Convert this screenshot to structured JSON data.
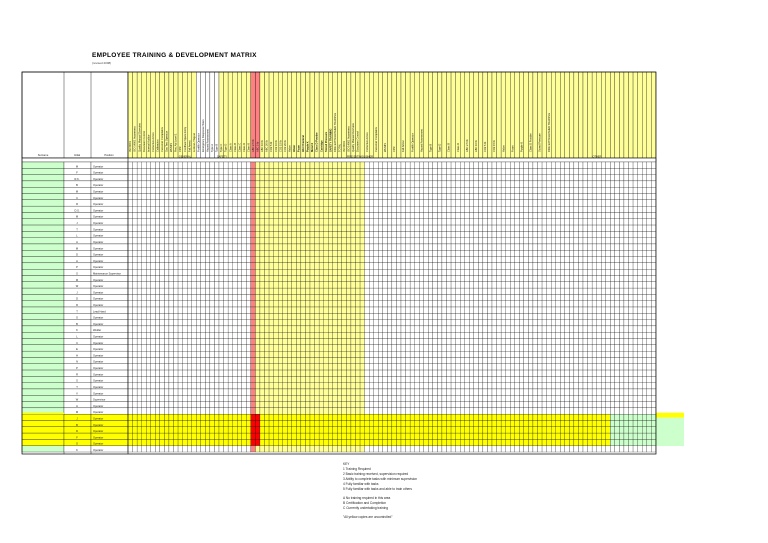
{
  "document": {
    "title": "EMPLOYEE TRAINING & DEVELOPMENT MATRIX",
    "subtitle": "(revised 2008)"
  },
  "table": {
    "headers": {
      "surname": "Surname",
      "initial": "Initial",
      "position": "Position"
    },
    "group_labels": {
      "general": "GENERAL",
      "safety": "SAFETY",
      "fire_extinguisher": "FIRE EXTINGUISHER",
      "other": "OTHER"
    },
    "column_headers": [
      "ISO 9001",
      "ISO 14001 Awareness",
      "Quality Manual Overview",
      "Document Control",
      "Internal Auditor",
      "Corrective Action",
      "Calibration",
      "Customer Complaints",
      "Gas Test Operator",
      "WHMIS",
      "First Aid Level 1",
      "CPR",
      "Confined Space Entry",
      "Fall Arrest",
      "Lockout / Tagout",
      "Forklift Operator",
      "Emergency Response Team",
      "Hazard Assessment",
      "Type A",
      "Type B",
      "Type C",
      "Type D",
      "Class A",
      "Class B",
      "Class C",
      "Class D",
      "Class K",
      "ABC 2.5 lb",
      "ABC 5 lb",
      "ABC 10 lb",
      "ABC 20 lb",
      "CO2 5 lb",
      "CO2 10 lb",
      "CO2 15 lb",
      "CO2 20 lb",
      "Halon",
      "Water",
      "Foam",
      "Wet Chemical",
      "Purple K",
      "Metal X",
      "Class D Powder",
      "Cartridge",
      "Stored Pressure",
      "SAFETY TRAINING",
      "FIRE EXTINGUISHER TRAINING",
      "TOTAL"
    ],
    "rows": [
      {
        "initial": "M",
        "position": "Operator"
      },
      {
        "initial": "F",
        "position": "Operator"
      },
      {
        "initial": "R.K.",
        "position": "Operator"
      },
      {
        "initial": "B",
        "position": "Operator"
      },
      {
        "initial": "M",
        "position": "Operator"
      },
      {
        "initial": "C",
        "position": "Operator"
      },
      {
        "initial": "R",
        "position": "Operator"
      },
      {
        "initial": "D.S.",
        "position": "Operator"
      },
      {
        "initial": "M",
        "position": "Operator"
      },
      {
        "initial": "J",
        "position": "Operator"
      },
      {
        "initial": "T",
        "position": "Operator"
      },
      {
        "initial": "L",
        "position": "Operator"
      },
      {
        "initial": "A",
        "position": "Operator"
      },
      {
        "initial": "M",
        "position": "Operator"
      },
      {
        "initial": "D",
        "position": "Operator"
      },
      {
        "initial": "A",
        "position": "Operator"
      },
      {
        "initial": "P",
        "position": "Operator"
      },
      {
        "initial": "S",
        "position": "Maintenance Supervisor"
      },
      {
        "initial": "M",
        "position": "Operator"
      },
      {
        "initial": "W",
        "position": "Operator"
      },
      {
        "initial": "J",
        "position": "Operator"
      },
      {
        "initial": "D",
        "position": "Operator"
      },
      {
        "initial": "R",
        "position": "Operator"
      },
      {
        "initial": "T",
        "position": "Lead Hand"
      },
      {
        "initial": "G",
        "position": "Operator"
      },
      {
        "initial": "B",
        "position": "Operator"
      },
      {
        "initial": "K",
        "position": "Welder"
      },
      {
        "initial": "L",
        "position": "Operator"
      },
      {
        "initial": "C",
        "position": "Operator"
      },
      {
        "initial": "E",
        "position": "Operator"
      },
      {
        "initial": "H",
        "position": "Operator"
      },
      {
        "initial": "N",
        "position": "Operator"
      },
      {
        "initial": "P",
        "position": "Operator"
      },
      {
        "initial": "R",
        "position": "Operator"
      },
      {
        "initial": "S",
        "position": "Operator"
      },
      {
        "initial": "T",
        "position": "Operator"
      },
      {
        "initial": "V",
        "position": "Operator"
      },
      {
        "initial": "W",
        "position": "Supervisor"
      },
      {
        "initial": "A",
        "position": "Operator"
      },
      {
        "initial": "M",
        "position": "Operator"
      },
      {
        "initial": "J",
        "position": "Operator"
      },
      {
        "initial": "B",
        "position": "Operator"
      },
      {
        "initial": "D",
        "position": "Operator"
      },
      {
        "initial": "F",
        "position": "Operator"
      },
      {
        "initial": "G",
        "position": "Operator"
      },
      {
        "initial": "K",
        "position": "Operator"
      }
    ]
  },
  "legend": {
    "heading": "KEY",
    "items": [
      "1   Training Required",
      "2   Basic training received, supervision required",
      "3   Ability to complete tasks with minimum supervision",
      "4   Fully familiar with tasks",
      "5   Fully familiar with tasks and able to train others"
    ],
    "items2": [
      "A   No training required in this area",
      "B   Certification and Completion",
      "C   Currently undertaking training"
    ],
    "footnote": "\"All yellow copies are uncontrolled\""
  },
  "colors": {
    "yellow": "#ffff99",
    "yellow_strong": "#ffff00",
    "red": "#ff8080",
    "red_strong": "#ff0000",
    "green": "#ccffcc"
  }
}
